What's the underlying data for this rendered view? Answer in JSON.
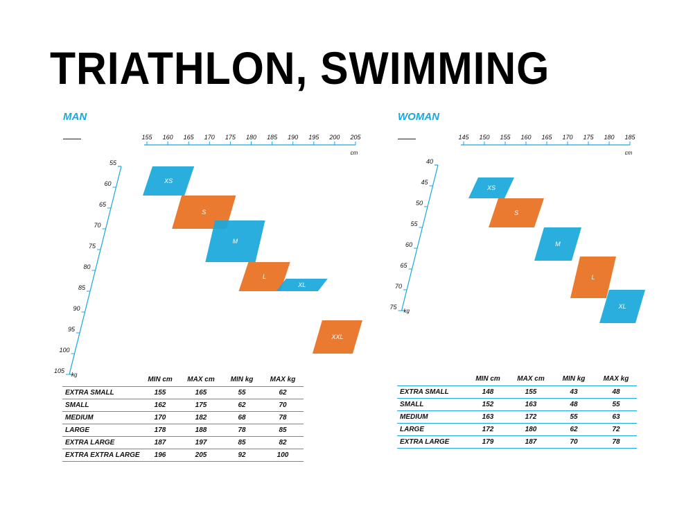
{
  "title": "TRIATHLON, SWIMMING",
  "colors": {
    "blue": "#1aa8dc",
    "orange": "#e8701f",
    "axis": "#1aa8dc"
  },
  "chart_data": [
    {
      "type": "table",
      "panel": "MAN",
      "x_axis": {
        "unit": "cm",
        "ticks": [
          155,
          160,
          165,
          170,
          175,
          180,
          185,
          190,
          195,
          200,
          205
        ],
        "range": [
          155,
          205
        ]
      },
      "y_axis": {
        "unit": "kg",
        "ticks": [
          55,
          60,
          65,
          70,
          75,
          80,
          85,
          90,
          95,
          100,
          105
        ],
        "range": [
          55,
          105
        ]
      },
      "sizes": [
        {
          "label": "XS",
          "color": "blue"
        },
        {
          "label": "S",
          "color": "orange"
        },
        {
          "label": "M",
          "color": "blue"
        },
        {
          "label": "L",
          "color": "orange"
        },
        {
          "label": "XL",
          "color": "blue"
        },
        {
          "label": "XXL",
          "color": "orange"
        }
      ],
      "columns": [
        "",
        "MIN cm",
        "MAX cm",
        "MIN kg",
        "MAX kg"
      ],
      "rows": [
        {
          "name": "EXTRA SMALL",
          "min_cm": 155,
          "max_cm": 165,
          "min_kg": 55,
          "max_kg": 62
        },
        {
          "name": "SMALL",
          "min_cm": 162,
          "max_cm": 175,
          "min_kg": 62,
          "max_kg": 70
        },
        {
          "name": "MEDIUM",
          "min_cm": 170,
          "max_cm": 182,
          "min_kg": 68,
          "max_kg": 78
        },
        {
          "name": "LARGE",
          "min_cm": 178,
          "max_cm": 188,
          "min_kg": 78,
          "max_kg": 85
        },
        {
          "name": "EXTRA LARGE",
          "min_cm": 187,
          "max_cm": 197,
          "min_kg": 85,
          "max_kg": 82
        },
        {
          "name": "EXTRA EXTRA LARGE",
          "min_cm": 196,
          "max_cm": 205,
          "min_kg": 92,
          "max_kg": 100
        }
      ]
    },
    {
      "type": "table",
      "panel": "WOMAN",
      "x_axis": {
        "unit": "cm",
        "ticks": [
          145,
          150,
          155,
          160,
          165,
          170,
          175,
          180,
          185
        ],
        "range": [
          145,
          185
        ]
      },
      "y_axis": {
        "unit": "kg",
        "ticks": [
          40,
          45,
          50,
          55,
          60,
          65,
          70,
          75
        ],
        "range": [
          40,
          75
        ]
      },
      "sizes": [
        {
          "label": "XS",
          "color": "blue"
        },
        {
          "label": "S",
          "color": "orange"
        },
        {
          "label": "M",
          "color": "blue"
        },
        {
          "label": "L",
          "color": "orange"
        },
        {
          "label": "XL",
          "color": "blue"
        }
      ],
      "columns": [
        "",
        "MIN cm",
        "MAX cm",
        "MIN kg",
        "MAX kg"
      ],
      "rows": [
        {
          "name": "EXTRA SMALL",
          "min_cm": 148,
          "max_cm": 155,
          "min_kg": 43,
          "max_kg": 48
        },
        {
          "name": "SMALL",
          "min_cm": 152,
          "max_cm": 163,
          "min_kg": 48,
          "max_kg": 55
        },
        {
          "name": "MEDIUM",
          "min_cm": 163,
          "max_cm": 172,
          "min_kg": 55,
          "max_kg": 63
        },
        {
          "name": "LARGE",
          "min_cm": 172,
          "max_cm": 180,
          "min_kg": 62,
          "max_kg": 72
        },
        {
          "name": "EXTRA LARGE",
          "min_cm": 179,
          "max_cm": 187,
          "min_kg": 70,
          "max_kg": 78
        }
      ]
    }
  ]
}
